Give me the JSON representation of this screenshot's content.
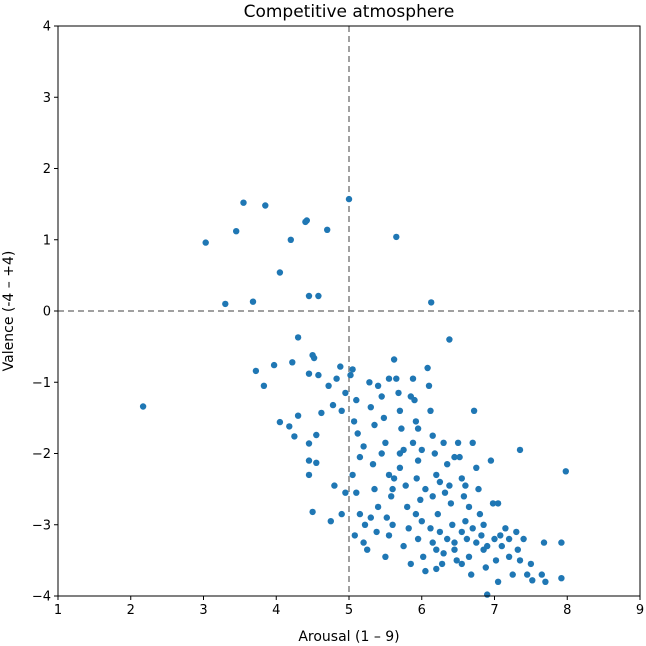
{
  "chart_data": {
    "type": "scatter",
    "title": "Competitive atmosphere",
    "xlabel": "Arousal (1 – 9)",
    "ylabel": "Valence (-4 – +4)",
    "xlim": [
      1,
      9
    ],
    "ylim": [
      -4,
      4
    ],
    "xticks": [
      "1",
      "2",
      "3",
      "4",
      "5",
      "6",
      "7",
      "8",
      "9"
    ],
    "yticks": [
      "−4",
      "−3",
      "−2",
      "−1",
      "0",
      "1",
      "2",
      "3",
      "4"
    ],
    "reference_lines": {
      "x": 5,
      "y": 0,
      "style": "dashed",
      "color": "#808080"
    },
    "grid": false,
    "marker_color": "#1f77b4",
    "points": [
      [
        3.55,
        1.52
      ],
      [
        3.85,
        1.48
      ],
      [
        4.4,
        1.25
      ],
      [
        4.42,
        1.27
      ],
      [
        4.7,
        1.14
      ],
      [
        3.45,
        1.12
      ],
      [
        4.2,
        1.0
      ],
      [
        3.03,
        0.96
      ],
      [
        5.0,
        1.57
      ],
      [
        5.65,
        1.04
      ],
      [
        4.05,
        0.54
      ],
      [
        4.45,
        0.21
      ],
      [
        4.58,
        0.21
      ],
      [
        3.3,
        0.1
      ],
      [
        3.68,
        0.13
      ],
      [
        6.13,
        0.12
      ],
      [
        2.17,
        -1.34
      ],
      [
        4.3,
        -0.37
      ],
      [
        6.38,
        -0.4
      ],
      [
        3.72,
        -0.84
      ],
      [
        3.83,
        -1.05
      ],
      [
        3.97,
        -0.76
      ],
      [
        4.22,
        -0.72
      ],
      [
        4.45,
        -0.88
      ],
      [
        4.5,
        -0.62
      ],
      [
        4.52,
        -0.66
      ],
      [
        4.58,
        -0.9
      ],
      [
        4.62,
        -1.43
      ],
      [
        4.3,
        -1.47
      ],
      [
        4.05,
        -1.56
      ],
      [
        4.18,
        -1.62
      ],
      [
        4.25,
        -1.76
      ],
      [
        4.45,
        -1.86
      ],
      [
        4.55,
        -1.74
      ],
      [
        4.45,
        -2.1
      ],
      [
        4.55,
        -2.13
      ],
      [
        4.45,
        -2.3
      ],
      [
        4.5,
        -2.82
      ],
      [
        4.75,
        -2.95
      ],
      [
        4.9,
        -2.85
      ],
      [
        4.95,
        -2.55
      ],
      [
        4.8,
        -2.45
      ],
      [
        4.72,
        -1.05
      ],
      [
        4.78,
        -1.32
      ],
      [
        4.83,
        -0.95
      ],
      [
        4.9,
        -1.4
      ],
      [
        4.95,
        -1.15
      ],
      [
        5.02,
        -0.9
      ],
      [
        4.88,
        -0.78
      ],
      [
        5.05,
        -0.82
      ],
      [
        5.1,
        -1.25
      ],
      [
        5.07,
        -1.55
      ],
      [
        5.12,
        -1.72
      ],
      [
        5.15,
        -2.05
      ],
      [
        5.2,
        -1.9
      ],
      [
        5.05,
        -2.3
      ],
      [
        5.1,
        -2.55
      ],
      [
        5.15,
        -2.85
      ],
      [
        5.2,
        -3.25
      ],
      [
        5.08,
        -3.15
      ],
      [
        5.22,
        -3.0
      ],
      [
        5.28,
        -1.0
      ],
      [
        5.3,
        -1.35
      ],
      [
        5.35,
        -1.6
      ],
      [
        5.33,
        -2.15
      ],
      [
        5.35,
        -2.5
      ],
      [
        5.4,
        -2.75
      ],
      [
        5.38,
        -3.1
      ],
      [
        5.25,
        -3.35
      ],
      [
        5.45,
        -1.2
      ],
      [
        5.48,
        -1.5
      ],
      [
        5.5,
        -1.85
      ],
      [
        5.45,
        -2.0
      ],
      [
        5.55,
        -2.3
      ],
      [
        5.58,
        -2.6
      ],
      [
        5.52,
        -2.9
      ],
      [
        5.55,
        -3.15
      ],
      [
        5.5,
        -3.45
      ],
      [
        5.6,
        -3.0
      ],
      [
        5.62,
        -0.68
      ],
      [
        5.65,
        -0.95
      ],
      [
        5.68,
        -1.15
      ],
      [
        5.7,
        -1.4
      ],
      [
        5.72,
        -1.65
      ],
      [
        5.75,
        -1.95
      ],
      [
        5.7,
        -2.2
      ],
      [
        5.78,
        -2.45
      ],
      [
        5.8,
        -2.75
      ],
      [
        5.82,
        -3.05
      ],
      [
        5.75,
        -3.3
      ],
      [
        5.85,
        -3.55
      ],
      [
        5.88,
        -0.95
      ],
      [
        5.9,
        -1.25
      ],
      [
        5.92,
        -1.55
      ],
      [
        5.88,
        -1.85
      ],
      [
        5.95,
        -2.1
      ],
      [
        5.93,
        -2.35
      ],
      [
        5.98,
        -2.65
      ],
      [
        6.0,
        -2.95
      ],
      [
        5.95,
        -3.2
      ],
      [
        6.02,
        -3.45
      ],
      [
        6.05,
        -3.65
      ],
      [
        6.08,
        -0.8
      ],
      [
        6.1,
        -1.05
      ],
      [
        6.12,
        -1.4
      ],
      [
        6.15,
        -1.75
      ],
      [
        6.18,
        -2.0
      ],
      [
        6.2,
        -2.3
      ],
      [
        6.15,
        -2.6
      ],
      [
        6.22,
        -2.85
      ],
      [
        6.25,
        -3.1
      ],
      [
        6.2,
        -3.35
      ],
      [
        6.28,
        -3.55
      ],
      [
        6.3,
        -1.85
      ],
      [
        6.35,
        -2.15
      ],
      [
        6.38,
        -2.45
      ],
      [
        6.4,
        -2.7
      ],
      [
        6.42,
        -3.0
      ],
      [
        6.45,
        -3.25
      ],
      [
        6.48,
        -3.5
      ],
      [
        6.5,
        -1.85
      ],
      [
        6.52,
        -2.05
      ],
      [
        6.55,
        -2.35
      ],
      [
        6.58,
        -2.6
      ],
      [
        6.6,
        -2.95
      ],
      [
        6.62,
        -3.2
      ],
      [
        6.65,
        -3.45
      ],
      [
        6.68,
        -3.7
      ],
      [
        6.7,
        -1.85
      ],
      [
        6.72,
        -1.4
      ],
      [
        6.75,
        -2.2
      ],
      [
        6.78,
        -2.5
      ],
      [
        6.8,
        -2.85
      ],
      [
        6.82,
        -3.15
      ],
      [
        6.85,
        -3.35
      ],
      [
        6.88,
        -3.6
      ],
      [
        6.9,
        -3.98
      ],
      [
        6.95,
        -2.1
      ],
      [
        6.98,
        -2.7
      ],
      [
        7.0,
        -3.2
      ],
      [
        7.02,
        -3.5
      ],
      [
        7.05,
        -2.7
      ],
      [
        7.05,
        -3.8
      ],
      [
        7.1,
        -3.3
      ],
      [
        7.15,
        -3.05
      ],
      [
        7.2,
        -3.45
      ],
      [
        7.25,
        -3.7
      ],
      [
        7.3,
        -3.1
      ],
      [
        7.32,
        -3.35
      ],
      [
        7.35,
        -1.95
      ],
      [
        7.35,
        -3.5
      ],
      [
        7.4,
        -3.2
      ],
      [
        7.45,
        -3.7
      ],
      [
        7.5,
        -3.55
      ],
      [
        7.52,
        -3.78
      ],
      [
        7.68,
        -3.25
      ],
      [
        7.65,
        -3.7
      ],
      [
        7.7,
        -3.8
      ],
      [
        7.92,
        -3.25
      ],
      [
        7.92,
        -3.75
      ],
      [
        7.98,
        -2.25
      ],
      [
        5.55,
        -0.95
      ],
      [
        5.4,
        -1.05
      ],
      [
        5.85,
        -1.2
      ],
      [
        6.0,
        -1.95
      ],
      [
        6.32,
        -2.55
      ],
      [
        6.12,
        -3.05
      ],
      [
        6.45,
        -2.05
      ],
      [
        6.55,
        -3.1
      ],
      [
        6.65,
        -2.75
      ],
      [
        6.7,
        -3.05
      ],
      [
        5.95,
        -1.65
      ],
      [
        5.62,
        -2.35
      ],
      [
        6.05,
        -2.5
      ],
      [
        6.25,
        -2.4
      ],
      [
        6.35,
        -3.2
      ],
      [
        6.6,
        -2.45
      ],
      [
        6.45,
        -3.35
      ],
      [
        6.75,
        -3.25
      ],
      [
        6.9,
        -3.3
      ],
      [
        7.2,
        -3.2
      ],
      [
        5.3,
        -2.9
      ],
      [
        5.6,
        -2.5
      ],
      [
        5.7,
        -2.0
      ],
      [
        5.92,
        -2.85
      ],
      [
        6.15,
        -3.25
      ],
      [
        6.3,
        -3.4
      ],
      [
        6.55,
        -3.55
      ],
      [
        6.85,
        -3.0
      ],
      [
        7.08,
        -3.15
      ],
      [
        6.2,
        -3.62
      ]
    ]
  }
}
